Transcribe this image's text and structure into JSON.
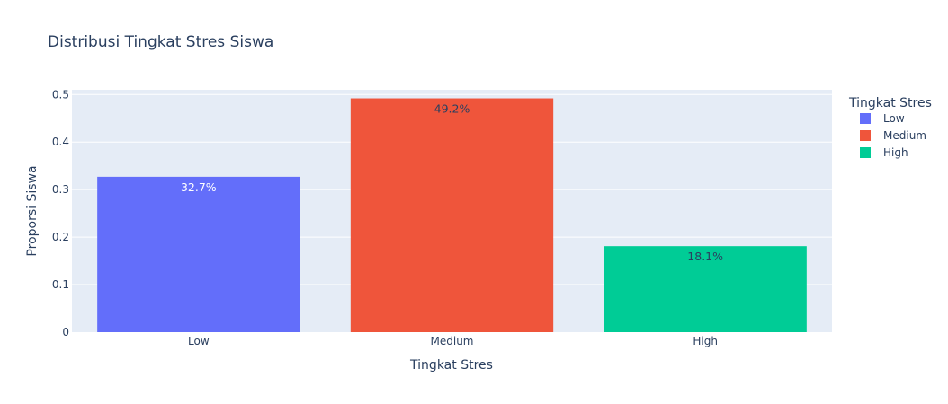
{
  "chart_data": {
    "type": "bar",
    "title": "Distribusi Tingkat Stres Siswa",
    "xlabel": "Tingkat Stres",
    "ylabel": "Proporsi Siswa",
    "categories": [
      "Low",
      "Medium",
      "High"
    ],
    "values": [
      0.327,
      0.492,
      0.181
    ],
    "data_labels": [
      "32.7%",
      "49.2%",
      "18.1%"
    ],
    "colors": [
      "#636efa",
      "#ef553b",
      "#00cc96"
    ],
    "label_colors": [
      "#ffffff",
      "#2a3f5f",
      "#2a3f5f"
    ],
    "ylim": [
      0,
      0.51
    ],
    "yticks": [
      0,
      0.1,
      0.2,
      0.3,
      0.4,
      0.5
    ],
    "ytick_labels": [
      "0",
      "0.1",
      "0.2",
      "0.3",
      "0.4",
      "0.5"
    ],
    "grid": true,
    "legend": {
      "title": "Tingkat Stres",
      "placement": "right",
      "entries": [
        "Low",
        "Medium",
        "High"
      ]
    }
  }
}
